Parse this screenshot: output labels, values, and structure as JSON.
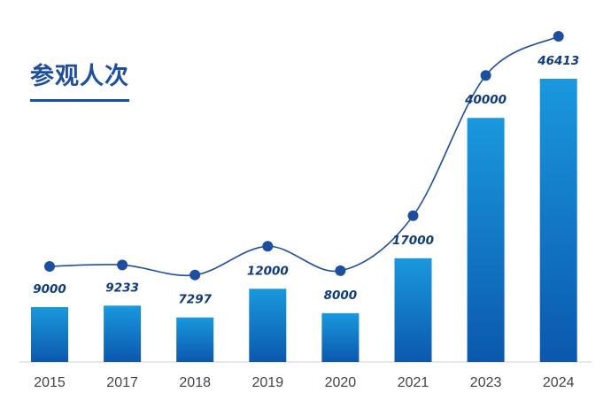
{
  "chart_data": {
    "type": "bar",
    "title": "参观人次",
    "categories": [
      "2015",
      "2017",
      "2018",
      "2019",
      "2020",
      "2021",
      "2023",
      "2024"
    ],
    "values": [
      9000,
      9233,
      7297,
      12000,
      8000,
      17000,
      40000,
      46413
    ],
    "value_labels": [
      "9000",
      "9233",
      "7297",
      "12000",
      "8000",
      "17000",
      "40000",
      "46413"
    ],
    "trend_line": true,
    "xlabel": "",
    "ylabel": "",
    "grid": false,
    "legend": "none",
    "colors": {
      "bar_top": "#1a98de",
      "bar_bottom": "#0b58ad",
      "line": "#1e4f9e",
      "title": "#1e4f9e",
      "label": "#0f3a7d"
    }
  }
}
